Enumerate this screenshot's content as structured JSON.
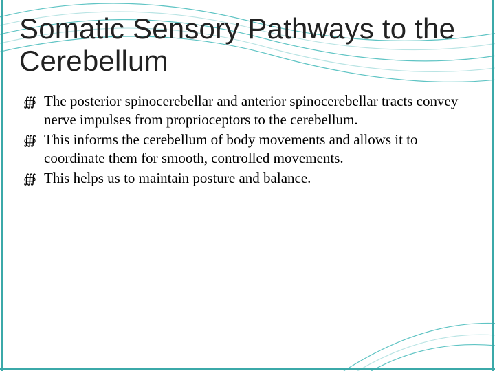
{
  "title": "Somatic Sensory Pathways to the Cerebellum",
  "bullets": [
    "The posterior spinocerebellar and anterior spinocerebellar tracts convey nerve impulses from proprioceptors to the cerebellum.",
    "This informs the cerebellum of body movements and allows it to coordinate them for smooth, controlled movements.",
    "This helps us to maintain posture and balance."
  ],
  "bullet_glyph": "∰",
  "colors": {
    "background": "#ffffff",
    "title_text": "#222222",
    "body_text": "#000000",
    "wave_stroke": "#5fc4c4",
    "wave_stroke_light": "#b9e4e4",
    "border": "#3ba9a9"
  },
  "typography": {
    "title_fontsize": 42,
    "title_weight": 300,
    "body_fontsize": 21
  },
  "waves": {
    "stroke_width": 1.2,
    "paths": [
      "M -20 30 Q 160 -20 360 30 T 740 45",
      "M -20 42 Q 170 -8 370 42 T 740 60",
      "M -20 55 Q 180 2 380 55 T 740 78",
      "M -20 68 Q 190 14 385 68 T 740 96",
      "M -20 80 Q 200 26 395 80 T 740 114"
    ],
    "corner_paths": [
      "M 540 540 Q 630 490 740 505",
      "M 520 540 Q 630 475 740 490",
      "M 500 540 Q 625 460 740 472"
    ]
  }
}
